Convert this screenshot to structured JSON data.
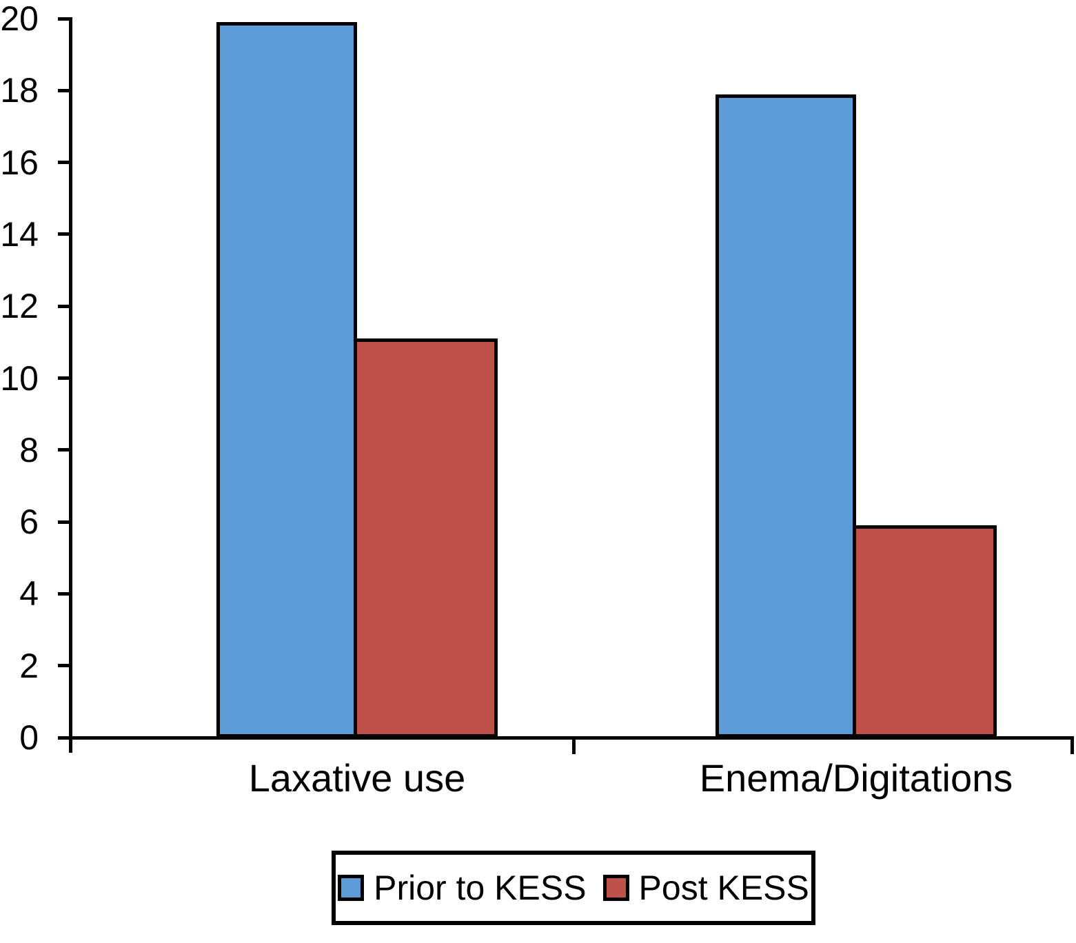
{
  "chart_data": {
    "type": "bar",
    "title": "",
    "xlabel": "",
    "ylabel": "",
    "categories": [
      "Laxative use",
      "Enema/Digitations"
    ],
    "series": [
      {
        "name": "Prior to KESS",
        "color": "#5B9BD8",
        "values": [
          19.9,
          17.9
        ]
      },
      {
        "name": "Post KESS",
        "color": "#BE5248",
        "values": [
          11.1,
          5.9
        ]
      }
    ],
    "ylim": [
      0,
      20
    ],
    "ytick_step": 2,
    "yticks": [
      0,
      2,
      4,
      6,
      8,
      10,
      12,
      14,
      16,
      18,
      20
    ],
    "grid": false,
    "legend_position": "bottom",
    "bar_outline_color": "#000000",
    "axis_color": "#000000",
    "background_color": "#FFFFFF"
  }
}
